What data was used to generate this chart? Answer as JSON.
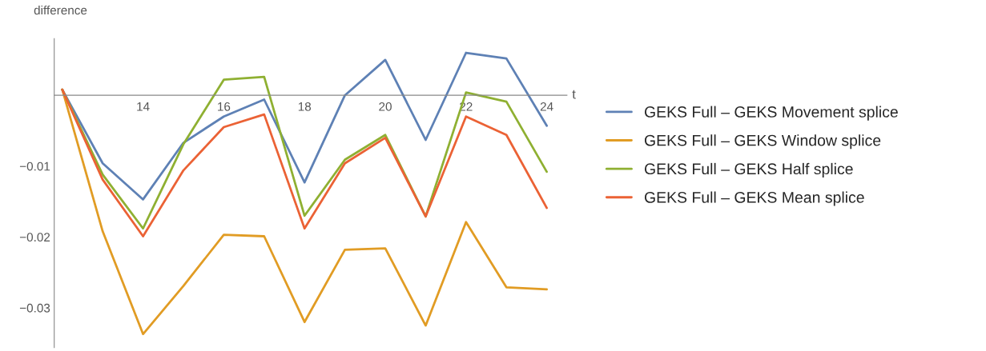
{
  "chart_data": {
    "type": "line",
    "xlabel": "t",
    "ylabel": "difference",
    "x": [
      12,
      13,
      14,
      15,
      16,
      17,
      18,
      19,
      20,
      21,
      22,
      23,
      24
    ],
    "xlim": [
      11.8,
      24.5
    ],
    "xticks": [
      14,
      16,
      18,
      20,
      22,
      24
    ],
    "ylim": [
      -0.0356,
      0.008
    ],
    "yticks": [
      {
        "value": -0.03,
        "label": "−0.03"
      },
      {
        "value": -0.02,
        "label": "−0.02"
      },
      {
        "value": -0.01,
        "label": "−0.01"
      }
    ],
    "grid": false,
    "legend": "right",
    "marker": "none",
    "line_style": "solid",
    "series": [
      {
        "name": "GEKS Full – GEKS Movement splice",
        "color": "#5e81b5",
        "values": [
          0.0008,
          -0.0096,
          -0.0147,
          -0.0067,
          -0.003,
          -0.0006,
          -0.0123,
          0.0,
          0.005,
          -0.0063,
          0.006,
          0.0052,
          -0.0043
        ]
      },
      {
        "name": "GEKS Full – GEKS Window splice",
        "color": "#e19c24",
        "values": [
          0.0008,
          -0.0192,
          -0.0337,
          -0.0269,
          -0.0197,
          -0.0199,
          -0.032,
          -0.0218,
          -0.0216,
          -0.0325,
          -0.0179,
          -0.0271,
          -0.0274
        ]
      },
      {
        "name": "GEKS Full – GEKS Half splice",
        "color": "#8fb032",
        "values": [
          0.0008,
          -0.0112,
          -0.0188,
          -0.0069,
          0.0022,
          0.0026,
          -0.017,
          -0.0091,
          -0.0056,
          -0.0171,
          0.0004,
          -0.0009,
          -0.0108
        ]
      },
      {
        "name": "GEKS Full – GEKS Mean splice",
        "color": "#eb6235",
        "values": [
          0.0008,
          -0.0119,
          -0.0199,
          -0.0106,
          -0.0045,
          -0.0027,
          -0.0188,
          -0.0096,
          -0.006,
          -0.0171,
          -0.003,
          -0.0056,
          -0.0159
        ]
      }
    ]
  }
}
